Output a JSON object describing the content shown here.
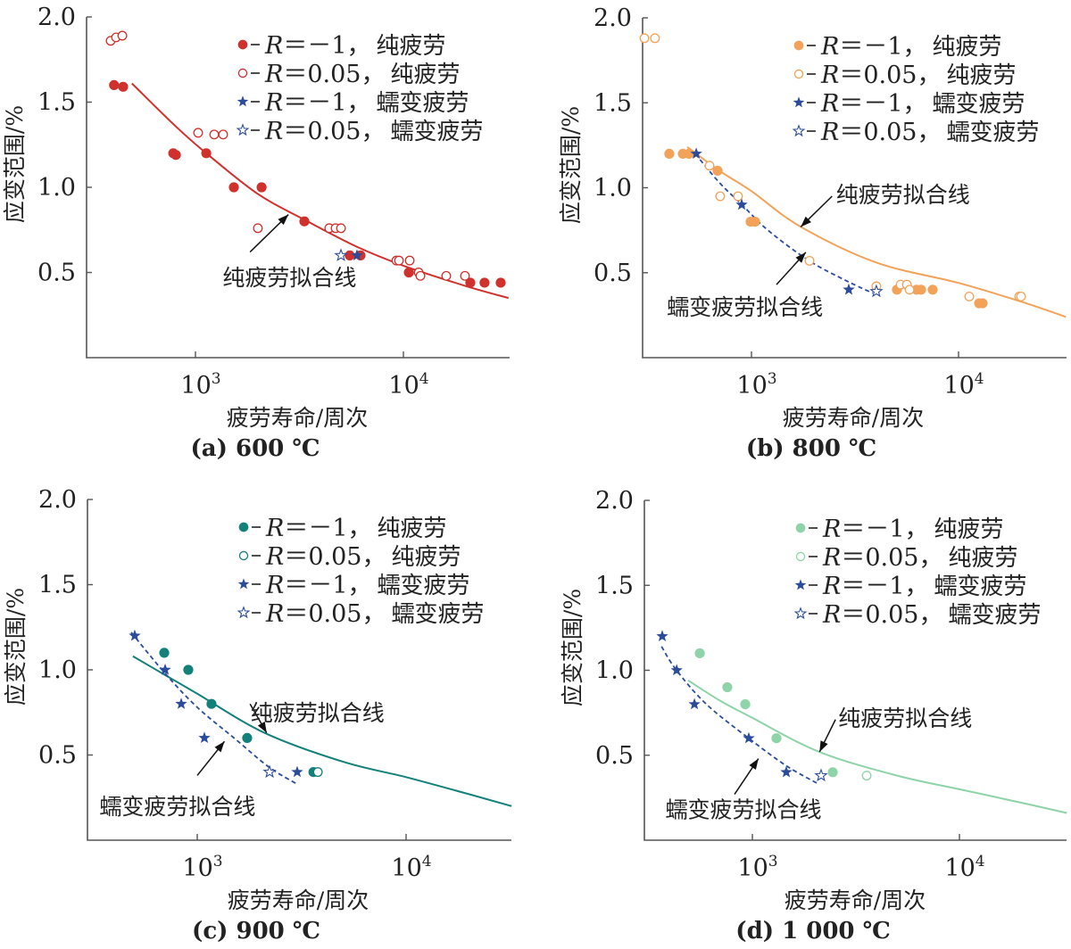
{
  "figure": {
    "ylabel": "应变范围/%",
    "xlabel": "疲劳寿命/周次",
    "legend_entries": [
      {
        "marker": "filled-circle",
        "series_key": "pure_R_neg1",
        "r_text": "R",
        "eq_text": "＝－1，",
        "desc": "纯疲劳"
      },
      {
        "marker": "open-circle",
        "series_key": "pure_R_005",
        "r_text": "R",
        "eq_text": "＝0.05，",
        "desc": "纯疲劳"
      },
      {
        "marker": "filled-star",
        "series_key": "creep_R_neg1",
        "r_text": "R",
        "eq_text": "＝－1，",
        "desc": "蠕变疲劳"
      },
      {
        "marker": "open-star",
        "series_key": "creep_R_005",
        "r_text": "R",
        "eq_text": "＝0.05，",
        "desc": "蠕变疲劳"
      }
    ],
    "creep_color": "#2b4c9b"
  },
  "chart_data": [
    {
      "type": "scatter",
      "title": "(a) 600 ℃",
      "xlabel": "疲劳寿命/周次",
      "ylabel": "应变范围/%",
      "xscale": "log",
      "xlim": [
        300,
        32000
      ],
      "ylim": [
        0,
        2.0
      ],
      "xticks": [
        {
          "value": 1000,
          "base": "10",
          "exp": "3"
        },
        {
          "value": 10000,
          "base": "10",
          "exp": "4"
        }
      ],
      "yticks": [
        {
          "value": 0.5,
          "label": "0.5"
        },
        {
          "value": 1.0,
          "label": "1.0"
        },
        {
          "value": 1.5,
          "label": "1.5"
        },
        {
          "value": 2.0,
          "label": "2.0"
        }
      ],
      "legend_position": "top-right",
      "color": "#d0312d",
      "series": [
        {
          "name": "R=－1，纯疲劳",
          "key": "pure_R_neg1",
          "marker": "filled-circle",
          "points": [
            [
              406,
              1.6
            ],
            [
              449,
              1.59
            ],
            [
              782,
              1.2
            ],
            [
              805,
              1.19
            ],
            [
              1127,
              1.2
            ],
            [
              1530,
              1.0
            ],
            [
              2080,
              1.0
            ],
            [
              3340,
              0.8
            ],
            [
              5520,
              0.6
            ],
            [
              6220,
              0.6
            ],
            [
              10620,
              0.5
            ],
            [
              20980,
              0.44
            ],
            [
              24550,
              0.44
            ],
            [
              29360,
              0.44
            ]
          ]
        },
        {
          "name": "R=0.05，纯疲劳",
          "key": "pure_R_005",
          "marker": "open-circle",
          "points": [
            [
              391,
              1.86
            ],
            [
              415,
              1.88
            ],
            [
              445,
              1.89
            ],
            [
              1030,
              1.32
            ],
            [
              1231,
              1.31
            ],
            [
              1359,
              1.31
            ],
            [
              1996,
              0.76
            ],
            [
              4400,
              0.76
            ],
            [
              4720,
              0.76
            ],
            [
              5010,
              0.76
            ],
            [
              9250,
              0.57
            ],
            [
              9520,
              0.57
            ],
            [
              10720,
              0.57
            ],
            [
              11840,
              0.5
            ],
            [
              12070,
              0.48
            ],
            [
              16070,
              0.48
            ],
            [
              19770,
              0.48
            ]
          ]
        },
        {
          "name": "R=－1，蠕变疲劳",
          "key": "creep_R_neg1",
          "marker": "filled-star",
          "points": [
            [
              5980,
              0.6
            ]
          ]
        },
        {
          "name": "R=0.05，蠕变疲劳",
          "key": "creep_R_005",
          "marker": "open-star",
          "points": [
            [
              5010,
              0.6
            ]
          ]
        }
      ],
      "fit_lines": [
        {
          "name": "纯疲劳拟合线",
          "style": "solid",
          "color": "#d0312d",
          "points": [
            [
              495,
              1.61
            ],
            [
              800,
              1.36
            ],
            [
              1127,
              1.2
            ],
            [
              2000,
              0.96
            ],
            [
              3340,
              0.81
            ],
            [
              6000,
              0.65
            ],
            [
              10000,
              0.54
            ],
            [
              20000,
              0.42
            ],
            [
              32000,
              0.35
            ]
          ]
        }
      ],
      "annotations": [
        {
          "text": "纯疲劳拟合线",
          "text_at": [
            1350,
            0.47
          ],
          "arrow_from": [
            1830,
            0.62
          ],
          "arrow_to": [
            2800,
            0.84
          ]
        }
      ]
    },
    {
      "type": "scatter",
      "title": "(b) 800 ℃",
      "xlabel": "疲劳寿命/周次",
      "ylabel": "应变范围/%",
      "xscale": "log",
      "xlim": [
        300,
        33000
      ],
      "ylim": [
        0,
        2.0
      ],
      "xticks": [
        {
          "value": 1000,
          "base": "10",
          "exp": "3"
        },
        {
          "value": 10000,
          "base": "10",
          "exp": "4"
        }
      ],
      "yticks": [
        {
          "value": 0.5,
          "label": "0.5"
        },
        {
          "value": 1.0,
          "label": "1.0"
        },
        {
          "value": 1.5,
          "label": "1.5"
        },
        {
          "value": 2.0,
          "label": "2.0"
        }
      ],
      "legend_position": "top-right",
      "color": "#f2a259",
      "series": [
        {
          "name": "R=－1，纯疲劳",
          "key": "pure_R_neg1",
          "marker": "filled-circle",
          "points": [
            [
              401,
              1.2
            ],
            [
              466,
              1.2
            ],
            [
              499,
              1.2
            ],
            [
              686,
              1.1
            ],
            [
              990,
              0.8
            ],
            [
              1041,
              0.8
            ],
            [
              5040,
              0.4
            ],
            [
              6270,
              0.4
            ],
            [
              6590,
              0.4
            ],
            [
              7500,
              0.4
            ],
            [
              12570,
              0.32
            ],
            [
              13070,
              0.32
            ]
          ]
        },
        {
          "name": "R=0.05，纯疲劳",
          "key": "pure_R_005",
          "marker": "open-circle",
          "points": [
            [
              304,
              1.88
            ],
            [
              342,
              1.88
            ],
            [
              627,
              1.13
            ],
            [
              706,
              0.95
            ],
            [
              861,
              0.95
            ],
            [
              1906,
              0.57
            ],
            [
              4010,
              0.42
            ],
            [
              5250,
              0.43
            ],
            [
              5630,
              0.43
            ],
            [
              5800,
              0.4
            ],
            [
              11270,
              0.36
            ],
            [
              19630,
              0.36
            ],
            [
              20040,
              0.36
            ]
          ]
        },
        {
          "name": "R=－1，蠕变疲劳",
          "key": "creep_R_neg1",
          "marker": "filled-star",
          "points": [
            [
              541,
              1.2
            ],
            [
              897,
              0.9
            ],
            [
              2950,
              0.4
            ]
          ]
        },
        {
          "name": "R=0.05，蠕变疲劳",
          "key": "creep_R_005",
          "marker": "open-star",
          "points": [
            [
              4010,
              0.39
            ]
          ]
        }
      ],
      "fit_lines": [
        {
          "name": "纯疲劳拟合线",
          "style": "solid",
          "color": "#f2a259",
          "points": [
            [
              490,
              1.24
            ],
            [
              700,
              1.1
            ],
            [
              1000,
              0.98
            ],
            [
              1730,
              0.77
            ],
            [
              4000,
              0.56
            ],
            [
              10000,
              0.44
            ],
            [
              20000,
              0.33
            ],
            [
              33000,
              0.24
            ]
          ]
        },
        {
          "name": "蠕变疲劳拟合线",
          "style": "dashed",
          "color": "#2b4c9b",
          "points": [
            [
              535,
              1.2
            ],
            [
              700,
              1.03
            ],
            [
              900,
              0.9
            ],
            [
              1200,
              0.75
            ],
            [
              1900,
              0.57
            ],
            [
              2900,
              0.45
            ],
            [
              3850,
              0.38
            ]
          ]
        }
      ],
      "annotations": [
        {
          "text": "纯疲劳拟合线",
          "text_at": [
            2560,
            0.96
          ],
          "arrow_from": [
            2450,
            0.95
          ],
          "arrow_to": [
            1730,
            0.77
          ]
        },
        {
          "text": "蠕变疲劳拟合线",
          "text_at": [
            390,
            0.3
          ],
          "arrow_from": [
            1320,
            0.43
          ],
          "arrow_to": [
            1830,
            0.62
          ]
        }
      ]
    },
    {
      "type": "scatter",
      "title": "(c) 900 ℃",
      "xlabel": "疲劳寿命/周次",
      "ylabel": "应变范围/%",
      "xscale": "log",
      "xlim": [
        300,
        32000
      ],
      "ylim": [
        0,
        2.0
      ],
      "xticks": [
        {
          "value": 1000,
          "base": "10",
          "exp": "3"
        },
        {
          "value": 10000,
          "base": "10",
          "exp": "4"
        }
      ],
      "yticks": [
        {
          "value": 0.5,
          "label": "0.5"
        },
        {
          "value": 1.0,
          "label": "1.0"
        },
        {
          "value": 1.5,
          "label": "1.5"
        },
        {
          "value": 2.0,
          "label": "2.0"
        }
      ],
      "legend_position": "top-right",
      "color": "#14807a",
      "series": [
        {
          "name": "R=－1，纯疲劳",
          "key": "pure_R_neg1",
          "marker": "filled-circle",
          "points": [
            [
              695,
              1.1
            ],
            [
              906,
              1.0
            ],
            [
              1170,
              0.8
            ],
            [
              1734,
              0.6
            ],
            [
              3600,
              0.4
            ]
          ]
        },
        {
          "name": "R=0.05，纯疲劳",
          "key": "pure_R_005",
          "marker": "open-circle",
          "points": [
            [
              3780,
              0.4
            ]
          ]
        },
        {
          "name": "R=－1，蠕变疲劳",
          "key": "creep_R_neg1",
          "marker": "filled-star",
          "points": [
            [
              502,
              1.2
            ],
            [
              702,
              1.0
            ],
            [
              838,
              0.8
            ],
            [
              1082,
              0.6
            ],
            [
              3010,
              0.4
            ]
          ]
        },
        {
          "name": "R=0.05，蠕变疲劳",
          "key": "creep_R_005",
          "marker": "open-star",
          "points": [
            [
              2220,
              0.4
            ]
          ]
        }
      ],
      "fit_lines": [
        {
          "name": "纯疲劳拟合线",
          "style": "solid",
          "color": "#14807a",
          "points": [
            [
              492,
              1.08
            ],
            [
              700,
              0.97
            ],
            [
              1000,
              0.86
            ],
            [
              2100,
              0.63
            ],
            [
              5000,
              0.46
            ],
            [
              10000,
              0.37
            ],
            [
              20000,
              0.27
            ],
            [
              32000,
              0.2
            ]
          ]
        },
        {
          "name": "蠕变疲劳拟合线",
          "style": "dashed",
          "color": "#2b4c9b",
          "points": [
            [
              483,
              1.22
            ],
            [
              700,
              0.98
            ],
            [
              1000,
              0.78
            ],
            [
              1500,
              0.6
            ],
            [
              2200,
              0.43
            ],
            [
              3000,
              0.33
            ]
          ]
        }
      ],
      "annotations": [
        {
          "text": "纯疲劳拟合线",
          "text_at": [
            1800,
            0.75
          ],
          "arrow_from": [
            1790,
            0.8
          ],
          "arrow_to": [
            2150,
            0.63
          ]
        },
        {
          "text": "蠕变疲劳拟合线",
          "text_at": [
            340,
            0.2
          ],
          "arrow_from": [
            1000,
            0.38
          ],
          "arrow_to": [
            1350,
            0.58
          ]
        }
      ]
    },
    {
      "type": "scatter",
      "title": "(d) 1 000 ℃",
      "xlabel": "疲劳寿命/周次",
      "ylabel": "应变范围/%",
      "xscale": "log",
      "xlim": [
        300,
        33000
      ],
      "ylim": [
        0,
        2.0
      ],
      "xticks": [
        {
          "value": 1000,
          "base": "10",
          "exp": "3"
        },
        {
          "value": 10000,
          "base": "10",
          "exp": "4"
        }
      ],
      "yticks": [
        {
          "value": 0.5,
          "label": "0.5"
        },
        {
          "value": 1.0,
          "label": "1.0"
        },
        {
          "value": 1.5,
          "label": "1.5"
        },
        {
          "value": 2.0,
          "label": "2.0"
        }
      ],
      "legend_position": "top-right",
      "color": "#8fd3a8",
      "series": [
        {
          "name": "R=－1，纯疲劳",
          "key": "pure_R_neg1",
          "marker": "filled-circle",
          "points": [
            [
              557,
              1.1
            ],
            [
              757,
              0.9
            ],
            [
              924,
              0.8
            ],
            [
              1307,
              0.6
            ],
            [
              2444,
              0.4
            ]
          ]
        },
        {
          "name": "R=0.05，纯疲劳",
          "key": "pure_R_005",
          "marker": "open-circle",
          "points": [
            [
              3564,
              0.38
            ]
          ]
        },
        {
          "name": "R=－1，蠕变疲劳",
          "key": "creep_R_neg1",
          "marker": "filled-star",
          "points": [
            [
              367,
              1.2
            ],
            [
              431,
              1.0
            ],
            [
              525,
              0.8
            ],
            [
              961,
              0.6
            ],
            [
              1458,
              0.4
            ]
          ]
        },
        {
          "name": "R=0.05，蠕变疲劳",
          "key": "creep_R_005",
          "marker": "open-star",
          "points": [
            [
              2147,
              0.38
            ]
          ]
        }
      ],
      "fit_lines": [
        {
          "name": "纯疲劳拟合线",
          "style": "solid",
          "color": "#8fd3a8",
          "points": [
            [
              490,
              0.94
            ],
            [
              700,
              0.82
            ],
            [
              1000,
              0.72
            ],
            [
              2100,
              0.52
            ],
            [
              5000,
              0.38
            ],
            [
              10000,
              0.3
            ],
            [
              20000,
              0.22
            ],
            [
              33000,
              0.16
            ]
          ]
        },
        {
          "name": "蠕变疲劳拟合线",
          "style": "dashed",
          "color": "#2b4c9b",
          "points": [
            [
              364,
              1.14
            ],
            [
              430,
              1.0
            ],
            [
              600,
              0.8
            ],
            [
              960,
              0.6
            ],
            [
              1450,
              0.44
            ],
            [
              2090,
              0.33
            ]
          ]
        }
      ],
      "annotations": [
        {
          "text": "纯疲劳拟合线",
          "text_at": [
            2600,
            0.72
          ],
          "arrow_from": [
            2520,
            0.71
          ],
          "arrow_to": [
            2110,
            0.52
          ]
        },
        {
          "text": "蠕变疲劳拟合线",
          "text_at": [
            380,
            0.18
          ],
          "arrow_from": [
            820,
            0.27
          ],
          "arrow_to": [
            1070,
            0.48
          ]
        }
      ]
    }
  ]
}
